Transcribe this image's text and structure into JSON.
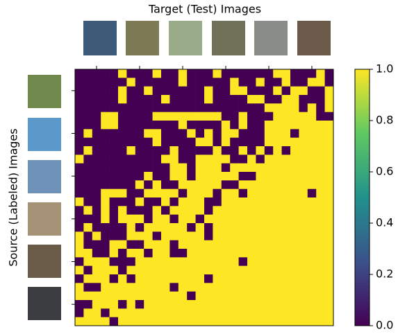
{
  "chart_data": {
    "type": "heatmap",
    "title": "Target (Test) Images",
    "y_label": "Source (Labeled) Images",
    "xlim": [
      -0.5,
      29.5
    ],
    "ylim": [
      -0.5,
      29.5
    ],
    "xticks": [
      2,
      7,
      12,
      17,
      22,
      27
    ],
    "yticks": [
      2,
      7,
      12,
      17,
      22,
      27
    ],
    "colormap": [
      "#440154",
      "#3b528b",
      "#21918c",
      "#5ec962",
      "#fde725"
    ],
    "colorbar": {
      "ylim": [
        0,
        1
      ],
      "yticks": [
        {
          "value": 0,
          "label": "0.0"
        },
        0.2,
        0.4,
        0.6,
        0.8,
        {
          "value": 1,
          "label": "1.0"
        }
      ]
    },
    "z": [
      [
        0,
        0,
        0,
        0,
        0,
        1,
        0,
        0,
        0,
        1,
        0,
        0,
        1,
        0,
        0,
        0,
        1,
        0,
        0,
        0,
        0,
        0,
        0,
        1,
        1,
        0,
        0,
        0,
        1,
        0
      ],
      [
        0,
        0,
        0,
        0,
        0,
        0,
        1,
        0,
        0,
        0,
        0,
        0,
        1,
        0,
        0,
        0,
        0,
        0,
        1,
        0,
        0,
        1,
        0,
        0,
        1,
        0,
        0,
        1,
        1,
        0
      ],
      [
        0,
        0,
        0,
        0,
        0,
        1,
        0,
        0,
        1,
        0,
        0,
        0,
        0,
        0,
        0,
        1,
        0,
        0,
        1,
        1,
        0,
        0,
        0,
        1,
        0,
        1,
        1,
        0,
        0,
        1
      ],
      [
        0,
        0,
        0,
        0,
        0,
        1,
        0,
        0,
        0,
        0,
        1,
        0,
        0,
        0,
        0,
        1,
        0,
        0,
        0,
        0,
        1,
        1,
        0,
        0,
        1,
        1,
        0,
        0,
        0,
        1
      ],
      [
        0,
        0,
        0,
        0,
        0,
        0,
        0,
        0,
        0,
        0,
        0,
        0,
        0,
        0,
        0,
        0,
        0,
        0,
        0,
        0,
        0,
        0,
        1,
        1,
        1,
        1,
        0,
        1,
        0,
        1
      ],
      [
        0,
        0,
        0,
        1,
        1,
        0,
        0,
        0,
        0,
        1,
        1,
        1,
        1,
        1,
        1,
        1,
        1,
        0,
        0,
        1,
        0,
        0,
        0,
        1,
        1,
        1,
        1,
        1,
        0,
        0
      ],
      [
        0,
        0,
        0,
        1,
        1,
        0,
        0,
        0,
        0,
        0,
        0,
        0,
        1,
        0,
        0,
        0,
        0,
        1,
        0,
        1,
        0,
        0,
        1,
        1,
        1,
        1,
        1,
        1,
        1,
        1
      ],
      [
        0,
        1,
        0,
        0,
        0,
        0,
        0,
        0,
        1,
        1,
        0,
        0,
        0,
        1,
        0,
        1,
        0,
        1,
        1,
        0,
        0,
        0,
        1,
        1,
        1,
        0,
        1,
        1,
        1,
        1
      ],
      [
        0,
        0,
        0,
        0,
        0,
        0,
        0,
        0,
        0,
        1,
        0,
        0,
        0,
        0,
        1,
        1,
        0,
        1,
        0,
        0,
        0,
        0,
        1,
        1,
        1,
        1,
        1,
        1,
        1,
        1
      ],
      [
        0,
        1,
        0,
        0,
        0,
        0,
        1,
        0,
        0,
        0,
        0,
        1,
        0,
        0,
        0,
        0,
        1,
        0,
        0,
        1,
        0,
        1,
        0,
        1,
        0,
        1,
        1,
        1,
        1,
        1
      ],
      [
        1,
        0,
        0,
        0,
        0,
        0,
        0,
        0,
        0,
        0,
        1,
        1,
        0,
        0,
        1,
        1,
        1,
        1,
        0,
        0,
        1,
        0,
        1,
        1,
        1,
        1,
        1,
        1,
        1,
        1
      ],
      [
        0,
        0,
        0,
        0,
        0,
        0,
        0,
        0,
        0,
        0,
        0,
        1,
        1,
        0,
        1,
        1,
        1,
        0,
        1,
        1,
        1,
        1,
        1,
        1,
        1,
        1,
        1,
        1,
        1,
        1
      ],
      [
        0,
        0,
        0,
        0,
        0,
        0,
        0,
        0,
        1,
        0,
        0,
        1,
        1,
        0,
        1,
        1,
        1,
        1,
        1,
        0,
        0,
        1,
        1,
        1,
        1,
        1,
        1,
        1,
        1,
        1
      ],
      [
        0,
        0,
        0,
        0,
        0,
        0,
        0,
        1,
        0,
        1,
        0,
        0,
        1,
        1,
        1,
        1,
        1,
        0,
        0,
        1,
        1,
        1,
        1,
        1,
        1,
        1,
        1,
        1,
        1,
        1
      ],
      [
        0,
        0,
        0,
        1,
        1,
        1,
        0,
        0,
        1,
        1,
        1,
        1,
        0,
        1,
        1,
        1,
        0,
        1,
        1,
        0,
        1,
        1,
        1,
        1,
        1,
        1,
        1,
        0,
        1,
        1
      ],
      [
        1,
        0,
        0,
        1,
        0,
        0,
        0,
        1,
        0,
        0,
        1,
        0,
        1,
        1,
        1,
        0,
        0,
        1,
        1,
        1,
        1,
        1,
        1,
        1,
        1,
        1,
        1,
        1,
        1,
        1
      ],
      [
        0,
        1,
        0,
        1,
        0,
        1,
        0,
        0,
        0,
        1,
        0,
        1,
        1,
        1,
        1,
        0,
        1,
        1,
        1,
        1,
        1,
        1,
        1,
        1,
        1,
        1,
        1,
        1,
        1,
        1
      ],
      [
        0,
        0,
        0,
        1,
        0,
        1,
        1,
        1,
        0,
        1,
        1,
        0,
        1,
        1,
        0,
        1,
        1,
        1,
        1,
        1,
        1,
        1,
        1,
        1,
        1,
        1,
        1,
        1,
        1,
        1
      ],
      [
        0,
        1,
        0,
        0,
        0,
        0,
        1,
        0,
        1,
        1,
        1,
        1,
        1,
        0,
        1,
        0,
        1,
        1,
        1,
        1,
        1,
        1,
        1,
        1,
        1,
        1,
        1,
        1,
        1,
        1
      ],
      [
        1,
        0,
        1,
        0,
        0,
        0,
        1,
        1,
        1,
        0,
        1,
        1,
        1,
        1,
        1,
        0,
        1,
        1,
        1,
        1,
        1,
        1,
        1,
        1,
        1,
        1,
        1,
        1,
        1,
        1
      ],
      [
        1,
        0,
        0,
        0,
        1,
        1,
        0,
        0,
        1,
        1,
        1,
        0,
        1,
        1,
        1,
        1,
        1,
        1,
        1,
        1,
        1,
        1,
        1,
        1,
        1,
        1,
        1,
        1,
        1,
        1
      ],
      [
        1,
        1,
        0,
        0,
        1,
        0,
        1,
        1,
        0,
        1,
        1,
        0,
        0,
        1,
        1,
        1,
        1,
        1,
        1,
        1,
        1,
        1,
        1,
        1,
        1,
        1,
        1,
        1,
        1,
        1
      ],
      [
        0,
        1,
        1,
        1,
        0,
        0,
        0,
        1,
        1,
        1,
        1,
        1,
        1,
        1,
        1,
        1,
        1,
        1,
        1,
        0,
        1,
        1,
        1,
        1,
        1,
        1,
        1,
        1,
        1,
        1
      ],
      [
        1,
        0,
        1,
        1,
        1,
        0,
        1,
        1,
        1,
        1,
        1,
        1,
        1,
        1,
        1,
        1,
        1,
        1,
        1,
        1,
        1,
        1,
        1,
        1,
        1,
        1,
        1,
        1,
        1,
        1
      ],
      [
        0,
        1,
        1,
        1,
        0,
        1,
        0,
        1,
        1,
        1,
        1,
        1,
        1,
        1,
        1,
        0,
        1,
        1,
        1,
        1,
        1,
        1,
        1,
        1,
        1,
        1,
        1,
        1,
        1,
        1
      ],
      [
        1,
        0,
        0,
        1,
        1,
        1,
        1,
        1,
        1,
        1,
        1,
        0,
        1,
        1,
        1,
        1,
        1,
        1,
        1,
        1,
        1,
        1,
        1,
        1,
        1,
        1,
        1,
        1,
        1,
        1
      ],
      [
        1,
        1,
        1,
        1,
        1,
        1,
        1,
        1,
        1,
        1,
        1,
        1,
        1,
        0,
        1,
        1,
        1,
        1,
        1,
        1,
        1,
        1,
        1,
        1,
        1,
        1,
        1,
        1,
        1,
        1
      ],
      [
        0,
        0,
        1,
        1,
        1,
        0,
        1,
        0,
        1,
        1,
        1,
        1,
        1,
        1,
        1,
        1,
        1,
        1,
        1,
        1,
        1,
        1,
        1,
        1,
        1,
        1,
        1,
        1,
        1,
        1
      ],
      [
        0,
        1,
        1,
        0,
        1,
        1,
        1,
        1,
        1,
        1,
        1,
        1,
        1,
        1,
        1,
        1,
        1,
        1,
        1,
        1,
        1,
        1,
        1,
        1,
        1,
        1,
        1,
        1,
        1,
        1
      ],
      [
        1,
        1,
        1,
        1,
        0,
        1,
        1,
        1,
        1,
        1,
        1,
        1,
        1,
        1,
        1,
        1,
        1,
        1,
        1,
        1,
        1,
        1,
        1,
        1,
        1,
        1,
        1,
        1,
        1,
        1
      ]
    ]
  }
}
